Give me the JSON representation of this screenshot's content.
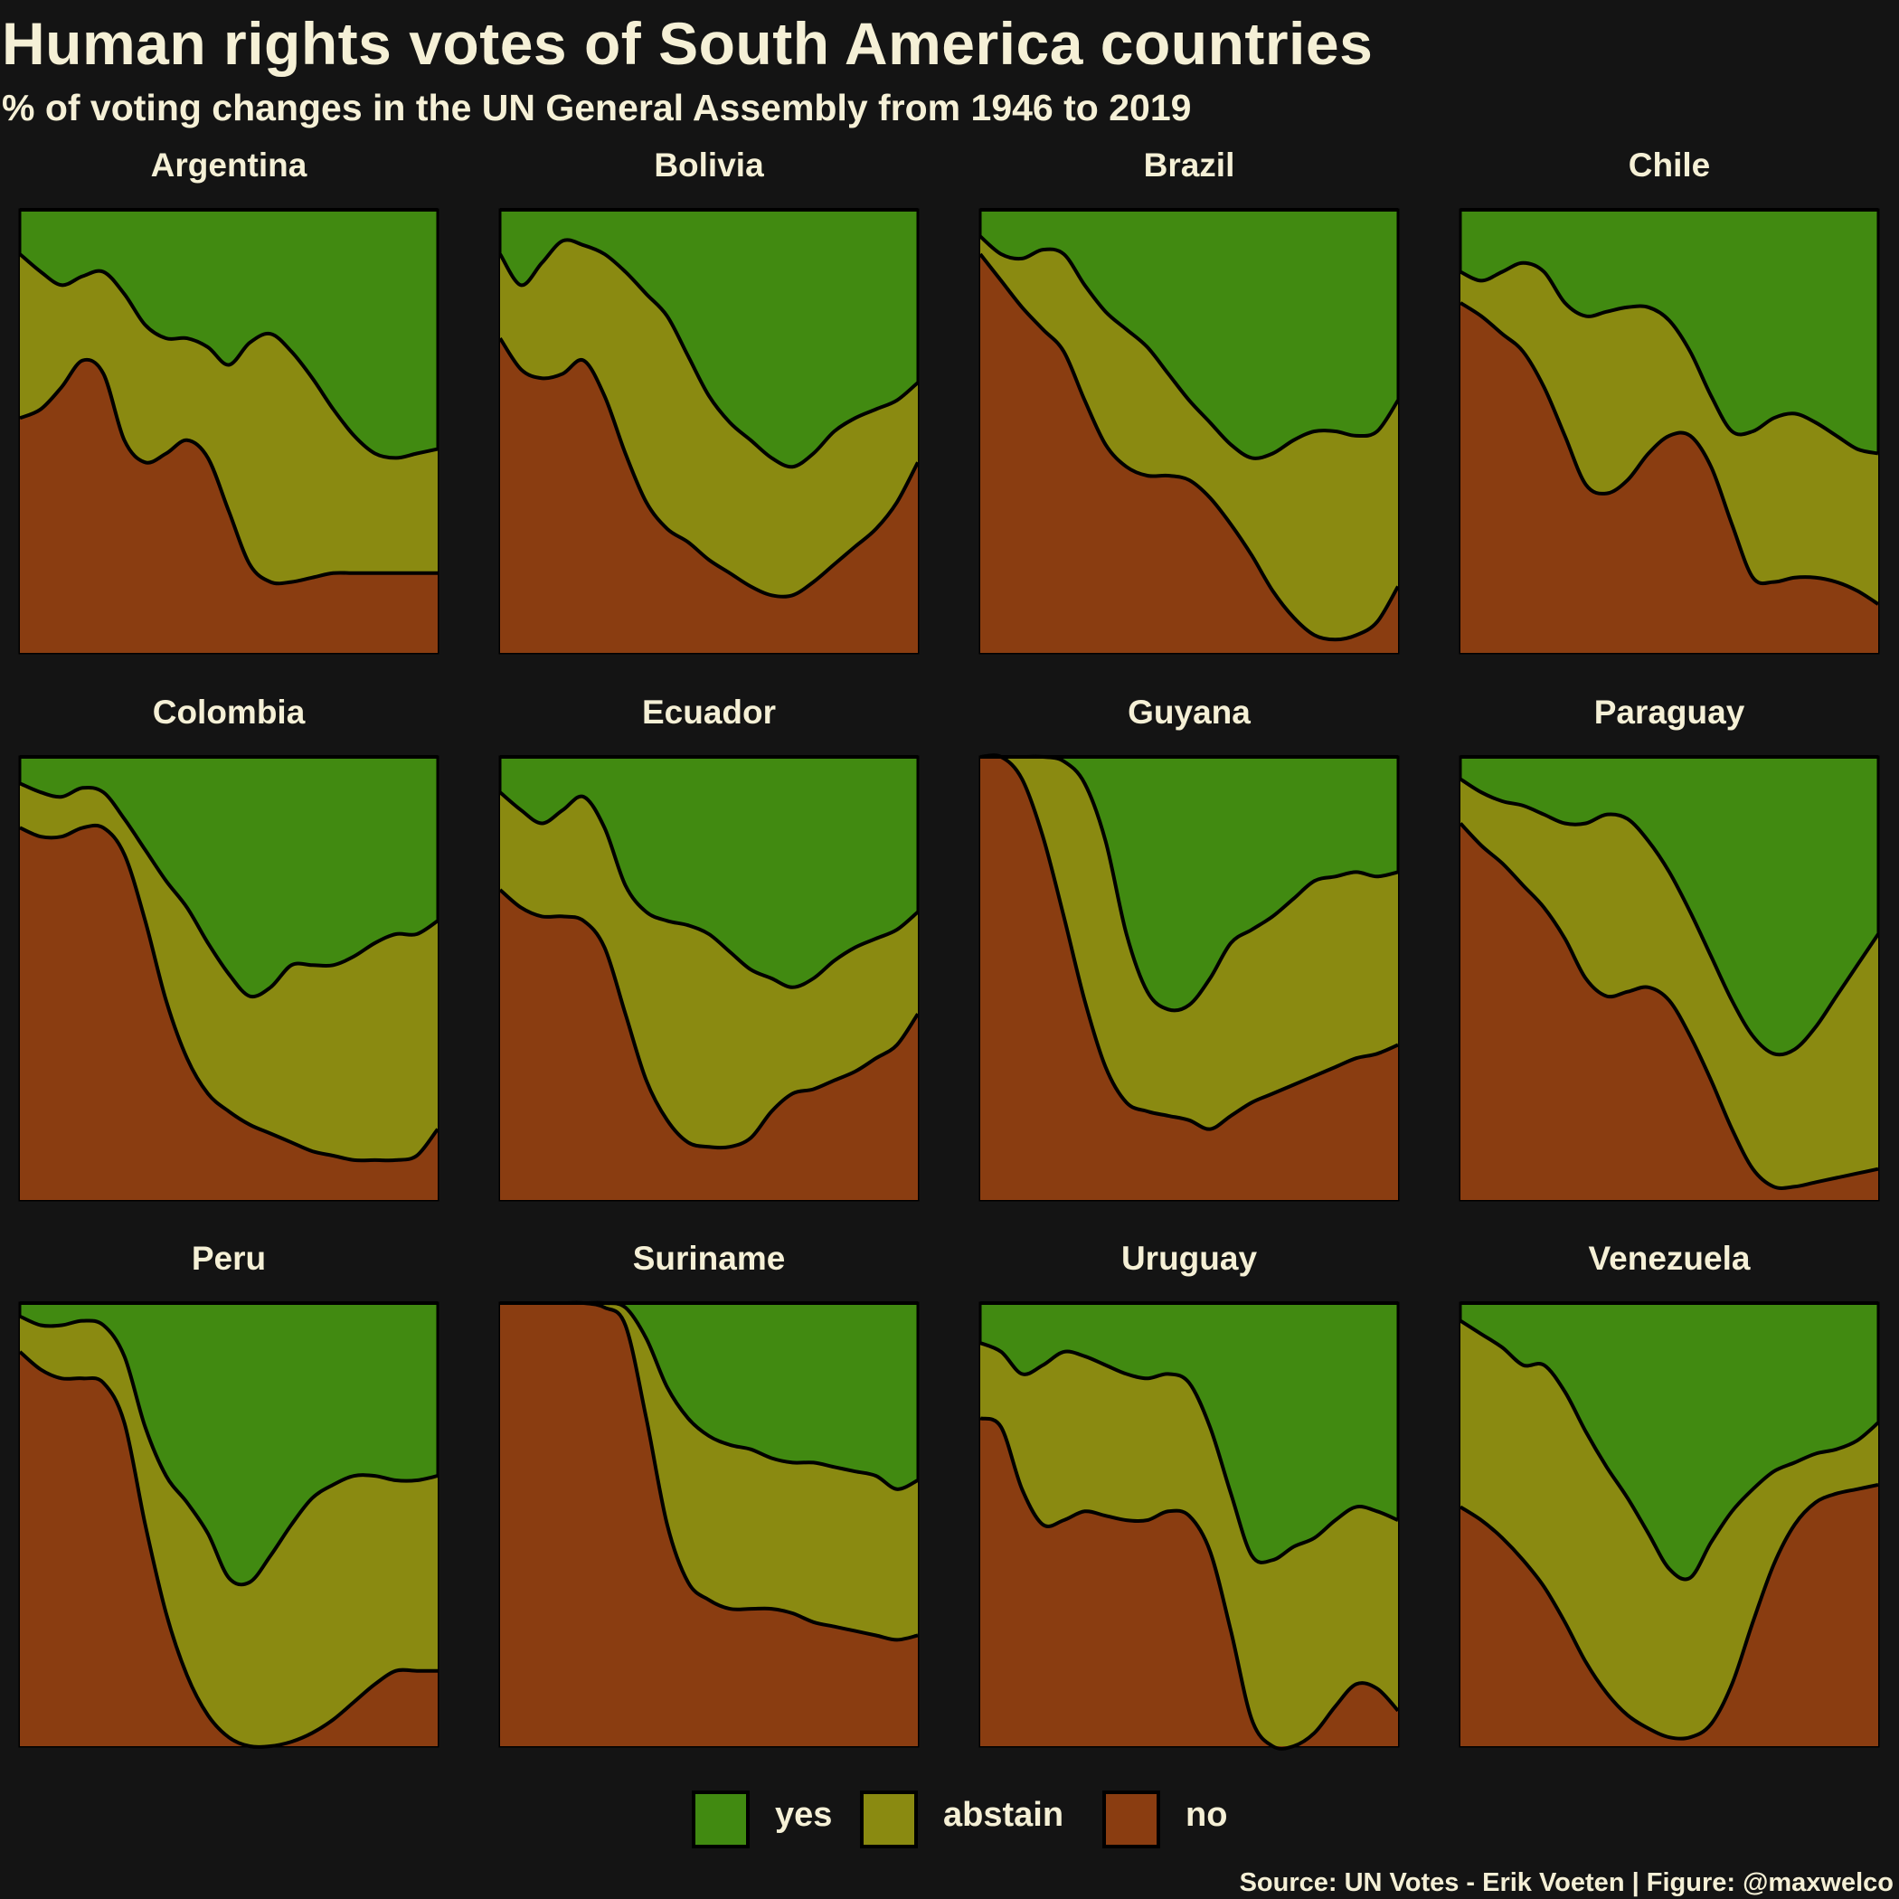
{
  "header": {
    "title": "Human rights votes of South America countries",
    "subtitle": "% of voting changes in the UN General Assembly from 1946 to 2019"
  },
  "caption": "Source: UN Votes - Erik Voeten | Figure: @maxwelco",
  "colors": {
    "yes": "#418a11",
    "abstain": "#8a8a11",
    "no": "#8a3d11",
    "background": "#141414",
    "outline": "#000000",
    "text": "#f5f0d6"
  },
  "legend": [
    {
      "key": "yes",
      "label": "yes"
    },
    {
      "key": "abstain",
      "label": "abstain"
    },
    {
      "key": "no",
      "label": "no"
    }
  ],
  "chart_data": {
    "type": "area",
    "stacked": true,
    "normalized": true,
    "x_range": [
      1946,
      2019
    ],
    "y_range": [
      0,
      1
    ],
    "facet_layout": {
      "columns": 4,
      "rows": 3
    },
    "stack_order_bottom_to_top": [
      "no",
      "abstain",
      "yes"
    ],
    "x": [
      0.0,
      0.05,
      0.1,
      0.15,
      0.2,
      0.25,
      0.3,
      0.35,
      0.4,
      0.45,
      0.5,
      0.55,
      0.6,
      0.65,
      0.7,
      0.75,
      0.8,
      0.85,
      0.9,
      0.95,
      1.0
    ],
    "x_unit": "fraction of the 1946-2019 period",
    "panels": [
      {
        "title": "Argentina",
        "no_top": [
          0.53,
          0.55,
          0.6,
          0.66,
          0.63,
          0.48,
          0.43,
          0.45,
          0.48,
          0.44,
          0.32,
          0.2,
          0.16,
          0.16,
          0.17,
          0.18,
          0.18,
          0.18,
          0.18,
          0.18,
          0.18
        ],
        "abstain_top": [
          0.9,
          0.86,
          0.83,
          0.85,
          0.86,
          0.81,
          0.74,
          0.71,
          0.71,
          0.69,
          0.65,
          0.7,
          0.72,
          0.68,
          0.62,
          0.55,
          0.49,
          0.45,
          0.44,
          0.45,
          0.46
        ]
      },
      {
        "title": "Bolivia",
        "no_top": [
          0.71,
          0.64,
          0.62,
          0.63,
          0.66,
          0.58,
          0.45,
          0.34,
          0.28,
          0.25,
          0.21,
          0.18,
          0.15,
          0.13,
          0.13,
          0.16,
          0.2,
          0.24,
          0.28,
          0.34,
          0.43
        ],
        "abstain_top": [
          0.9,
          0.83,
          0.88,
          0.93,
          0.92,
          0.9,
          0.86,
          0.81,
          0.76,
          0.67,
          0.58,
          0.52,
          0.48,
          0.44,
          0.42,
          0.45,
          0.5,
          0.53,
          0.55,
          0.57,
          0.61
        ]
      },
      {
        "title": "Brazil",
        "no_top": [
          0.9,
          0.84,
          0.78,
          0.73,
          0.68,
          0.57,
          0.47,
          0.42,
          0.4,
          0.4,
          0.39,
          0.35,
          0.29,
          0.22,
          0.14,
          0.08,
          0.04,
          0.03,
          0.04,
          0.07,
          0.15
        ],
        "abstain_top": [
          0.94,
          0.9,
          0.89,
          0.91,
          0.9,
          0.83,
          0.77,
          0.73,
          0.69,
          0.63,
          0.57,
          0.52,
          0.47,
          0.44,
          0.45,
          0.48,
          0.5,
          0.5,
          0.49,
          0.5,
          0.57
        ]
      },
      {
        "title": "Chile",
        "no_top": [
          0.79,
          0.76,
          0.72,
          0.68,
          0.6,
          0.49,
          0.38,
          0.36,
          0.39,
          0.45,
          0.49,
          0.49,
          0.42,
          0.29,
          0.17,
          0.16,
          0.17,
          0.17,
          0.16,
          0.14,
          0.11
        ],
        "abstain_top": [
          0.86,
          0.84,
          0.86,
          0.88,
          0.86,
          0.79,
          0.76,
          0.77,
          0.78,
          0.78,
          0.75,
          0.68,
          0.58,
          0.5,
          0.5,
          0.53,
          0.54,
          0.52,
          0.49,
          0.46,
          0.45
        ]
      },
      {
        "title": "Colombia",
        "no_top": [
          0.84,
          0.82,
          0.82,
          0.84,
          0.84,
          0.78,
          0.63,
          0.45,
          0.32,
          0.24,
          0.2,
          0.17,
          0.15,
          0.13,
          0.11,
          0.1,
          0.09,
          0.09,
          0.09,
          0.1,
          0.16
        ],
        "abstain_top": [
          0.94,
          0.92,
          0.91,
          0.93,
          0.92,
          0.86,
          0.79,
          0.72,
          0.66,
          0.58,
          0.51,
          0.46,
          0.48,
          0.53,
          0.53,
          0.53,
          0.55,
          0.58,
          0.6,
          0.6,
          0.63
        ]
      },
      {
        "title": "Ecuador",
        "no_top": [
          0.7,
          0.66,
          0.64,
          0.64,
          0.63,
          0.57,
          0.42,
          0.27,
          0.18,
          0.13,
          0.12,
          0.12,
          0.14,
          0.2,
          0.24,
          0.25,
          0.27,
          0.29,
          0.32,
          0.35,
          0.42
        ],
        "abstain_top": [
          0.92,
          0.88,
          0.85,
          0.88,
          0.91,
          0.84,
          0.71,
          0.65,
          0.63,
          0.62,
          0.6,
          0.56,
          0.52,
          0.5,
          0.48,
          0.5,
          0.54,
          0.57,
          0.59,
          0.61,
          0.65
        ]
      },
      {
        "title": "Guyana",
        "no_top": [
          1.0,
          1.0,
          0.95,
          0.82,
          0.64,
          0.45,
          0.3,
          0.22,
          0.2,
          0.19,
          0.18,
          0.16,
          0.19,
          0.22,
          0.24,
          0.26,
          0.28,
          0.3,
          0.32,
          0.33,
          0.35
        ],
        "abstain_top": [
          1.0,
          1.0,
          1.0,
          1.0,
          0.99,
          0.94,
          0.81,
          0.6,
          0.47,
          0.43,
          0.44,
          0.5,
          0.58,
          0.61,
          0.64,
          0.68,
          0.72,
          0.73,
          0.74,
          0.73,
          0.74
        ]
      },
      {
        "title": "Paraguay",
        "no_top": [
          0.85,
          0.8,
          0.76,
          0.71,
          0.66,
          0.59,
          0.5,
          0.46,
          0.47,
          0.48,
          0.45,
          0.37,
          0.27,
          0.16,
          0.07,
          0.03,
          0.03,
          0.04,
          0.05,
          0.06,
          0.07
        ],
        "abstain_top": [
          0.95,
          0.92,
          0.9,
          0.89,
          0.87,
          0.85,
          0.85,
          0.87,
          0.86,
          0.81,
          0.74,
          0.65,
          0.55,
          0.45,
          0.37,
          0.33,
          0.34,
          0.39,
          0.46,
          0.53,
          0.6
        ]
      },
      {
        "title": "Peru",
        "no_top": [
          0.89,
          0.85,
          0.83,
          0.83,
          0.82,
          0.73,
          0.5,
          0.3,
          0.16,
          0.07,
          0.02,
          0.0,
          0.0,
          0.01,
          0.03,
          0.06,
          0.1,
          0.14,
          0.17,
          0.17,
          0.17
        ],
        "abstain_top": [
          0.97,
          0.95,
          0.95,
          0.96,
          0.95,
          0.88,
          0.72,
          0.61,
          0.55,
          0.48,
          0.38,
          0.37,
          0.43,
          0.5,
          0.56,
          0.59,
          0.61,
          0.61,
          0.6,
          0.6,
          0.61
        ]
      },
      {
        "title": "Suriname",
        "no_top": [
          1.0,
          1.0,
          1.0,
          1.0,
          1.0,
          0.99,
          0.95,
          0.74,
          0.5,
          0.37,
          0.33,
          0.31,
          0.31,
          0.31,
          0.3,
          0.28,
          0.27,
          0.26,
          0.25,
          0.24,
          0.25
        ],
        "abstain_top": [
          1.0,
          1.0,
          1.0,
          1.0,
          1.0,
          1.0,
          0.99,
          0.92,
          0.81,
          0.74,
          0.7,
          0.68,
          0.67,
          0.65,
          0.64,
          0.64,
          0.63,
          0.62,
          0.61,
          0.58,
          0.6
        ]
      },
      {
        "title": "Uruguay",
        "no_top": [
          0.74,
          0.72,
          0.58,
          0.5,
          0.51,
          0.53,
          0.52,
          0.51,
          0.51,
          0.53,
          0.52,
          0.44,
          0.26,
          0.06,
          0.0,
          0.0,
          0.03,
          0.09,
          0.14,
          0.13,
          0.08
        ],
        "abstain_top": [
          0.91,
          0.89,
          0.84,
          0.86,
          0.89,
          0.88,
          0.86,
          0.84,
          0.83,
          0.84,
          0.82,
          0.72,
          0.57,
          0.43,
          0.42,
          0.45,
          0.47,
          0.51,
          0.54,
          0.53,
          0.51
        ]
      },
      {
        "title": "Venezuela",
        "no_top": [
          0.54,
          0.51,
          0.47,
          0.42,
          0.36,
          0.28,
          0.19,
          0.12,
          0.07,
          0.04,
          0.02,
          0.02,
          0.05,
          0.14,
          0.28,
          0.41,
          0.5,
          0.55,
          0.57,
          0.58,
          0.59
        ],
        "abstain_top": [
          0.96,
          0.93,
          0.9,
          0.86,
          0.86,
          0.8,
          0.71,
          0.63,
          0.56,
          0.48,
          0.4,
          0.38,
          0.46,
          0.53,
          0.58,
          0.62,
          0.64,
          0.66,
          0.67,
          0.69,
          0.73
        ]
      }
    ]
  }
}
